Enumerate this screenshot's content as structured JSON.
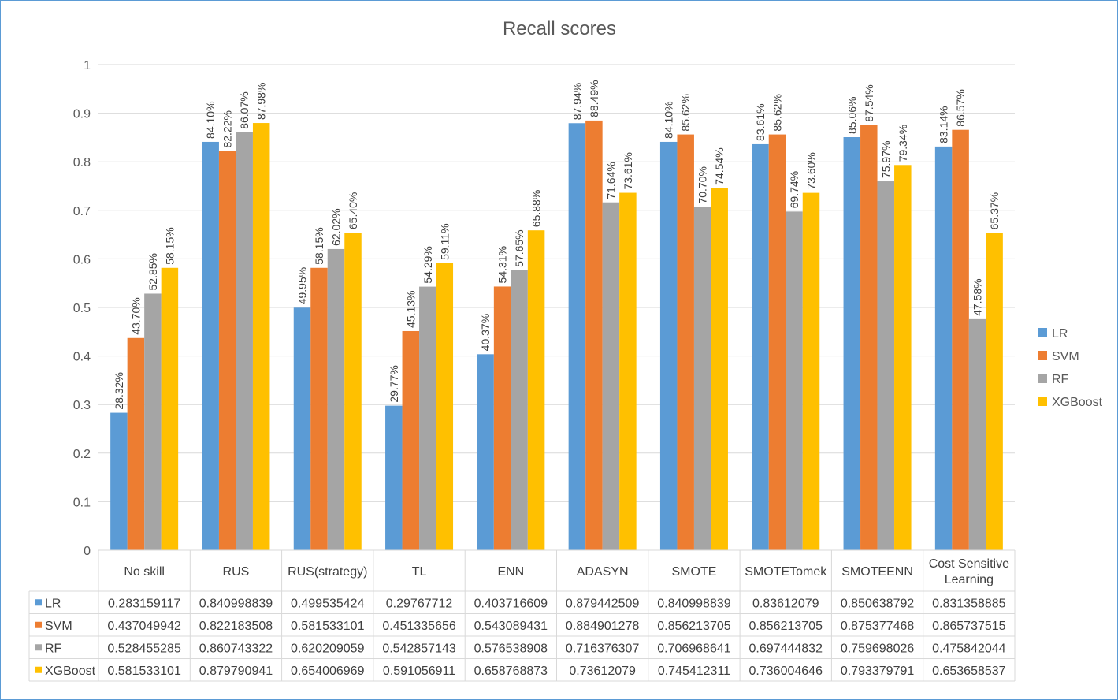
{
  "chart_data": {
    "type": "bar",
    "title": "Recall scores",
    "ylim": [
      0,
      1
    ],
    "yticks": [
      "0",
      "0.1",
      "0.2",
      "0.3",
      "0.4",
      "0.5",
      "0.6",
      "0.7",
      "0.8",
      "0.9",
      "1"
    ],
    "grid": true,
    "legend_position": "right",
    "categories": [
      [
        "No skill"
      ],
      [
        "RUS"
      ],
      [
        "RUS(strategy)"
      ],
      [
        "TL"
      ],
      [
        "ENN"
      ],
      [
        "ADASYN"
      ],
      [
        "SMOTE"
      ],
      [
        "SMOTETomek"
      ],
      [
        "SMOTEENN"
      ],
      [
        "Cost Sensitive",
        "Learning"
      ]
    ],
    "series": [
      {
        "name": "LR",
        "color": "#5b9bd5",
        "values": [
          0.283159117,
          0.840998839,
          0.499535424,
          0.29767712,
          0.403716609,
          0.879442509,
          0.840998839,
          0.83612079,
          0.850638792,
          0.831358885
        ],
        "labels": [
          "28.32%",
          "84.10%",
          "49.95%",
          "29.77%",
          "40.37%",
          "87.94%",
          "84.10%",
          "83.61%",
          "85.06%",
          "83.14%"
        ],
        "table": [
          "0.283159117",
          "0.840998839",
          "0.499535424",
          "0.29767712",
          "0.403716609",
          "0.879442509",
          "0.840998839",
          "0.83612079",
          "0.850638792",
          "0.831358885"
        ]
      },
      {
        "name": "SVM",
        "color": "#ed7d31",
        "values": [
          0.437049942,
          0.822183508,
          0.581533101,
          0.451335656,
          0.543089431,
          0.884901278,
          0.856213705,
          0.856213705,
          0.875377468,
          0.865737515
        ],
        "labels": [
          "43.70%",
          "82.22%",
          "58.15%",
          "45.13%",
          "54.31%",
          "88.49%",
          "85.62%",
          "85.62%",
          "87.54%",
          "86.57%"
        ],
        "table": [
          "0.437049942",
          "0.822183508",
          "0.581533101",
          "0.451335656",
          "0.543089431",
          "0.884901278",
          "0.856213705",
          "0.856213705",
          "0.875377468",
          "0.865737515"
        ]
      },
      {
        "name": "RF",
        "color": "#a5a5a5",
        "values": [
          0.528455285,
          0.860743322,
          0.620209059,
          0.542857143,
          0.576538908,
          0.716376307,
          0.706968641,
          0.697444832,
          0.759698026,
          0.475842044
        ],
        "labels": [
          "52.85%",
          "86.07%",
          "62.02%",
          "54.29%",
          "57.65%",
          "71.64%",
          "70.70%",
          "69.74%",
          "75.97%",
          "47.58%"
        ],
        "table": [
          "0.528455285",
          "0.860743322",
          "0.620209059",
          "0.542857143",
          "0.576538908",
          "0.716376307",
          "0.706968641",
          "0.697444832",
          "0.759698026",
          "0.475842044"
        ]
      },
      {
        "name": "XGBoost",
        "color": "#ffc000",
        "values": [
          0.581533101,
          0.879790941,
          0.654006969,
          0.591056911,
          0.658768873,
          0.73612079,
          0.745412311,
          0.736004646,
          0.793379791,
          0.653658537
        ],
        "labels": [
          "58.15%",
          "87.98%",
          "65.40%",
          "59.11%",
          "65.88%",
          "73.61%",
          "74.54%",
          "73.60%",
          "79.34%",
          "65.37%"
        ],
        "table": [
          "0.581533101",
          "0.879790941",
          "0.654006969",
          "0.591056911",
          "0.658768873",
          "0.73612079",
          "0.745412311",
          "0.736004646",
          "0.793379791",
          "0.653658537"
        ]
      }
    ]
  }
}
